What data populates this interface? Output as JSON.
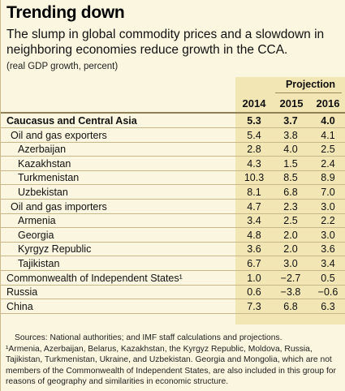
{
  "title": "Trending down",
  "subtitle": "The slump in global commodity prices and a slowdown in neighboring economies reduce growth in the CCA.",
  "unit": "(real GDP growth, percent)",
  "projection_label": "Projection",
  "years": [
    "2014",
    "2015",
    "2016"
  ],
  "rows": [
    {
      "label": "Caucasus and Central Asia",
      "level": 0,
      "bold": true,
      "values": [
        "5.3",
        "3.7",
        "4.0"
      ]
    },
    {
      "label": "Oil and gas exporters",
      "level": 1,
      "bold": false,
      "values": [
        "5.4",
        "3.8",
        "4.1"
      ]
    },
    {
      "label": "Azerbaijan",
      "level": 2,
      "bold": false,
      "values": [
        "2.8",
        "4.0",
        "2.5"
      ]
    },
    {
      "label": "Kazakhstan",
      "level": 2,
      "bold": false,
      "values": [
        "4.3",
        "1.5",
        "2.4"
      ]
    },
    {
      "label": "Turkmenistan",
      "level": 2,
      "bold": false,
      "values": [
        "10.3",
        "8.5",
        "8.9"
      ]
    },
    {
      "label": "Uzbekistan",
      "level": 2,
      "bold": false,
      "values": [
        "8.1",
        "6.8",
        "7.0"
      ]
    },
    {
      "label": "Oil and gas importers",
      "level": 1,
      "bold": false,
      "values": [
        "4.7",
        "2.3",
        "3.0"
      ]
    },
    {
      "label": "Armenia",
      "level": 2,
      "bold": false,
      "values": [
        "3.4",
        "2.5",
        "2.2"
      ]
    },
    {
      "label": "Georgia",
      "level": 2,
      "bold": false,
      "values": [
        "4.8",
        "2.0",
        "3.0"
      ]
    },
    {
      "label": "Kyrgyz Republic",
      "level": 2,
      "bold": false,
      "values": [
        "3.6",
        "2.0",
        "3.6"
      ]
    },
    {
      "label": "Tajikistan",
      "level": 2,
      "bold": false,
      "values": [
        "6.7",
        "3.0",
        "3.4"
      ]
    },
    {
      "label": "Commonwealth of Independent States¹",
      "level": 0,
      "bold": false,
      "values": [
        "1.0",
        "−2.7",
        "0.5"
      ]
    },
    {
      "label": "Russia",
      "level": 0,
      "bold": false,
      "values": [
        "0.6",
        "−3.8",
        "−0.6"
      ]
    },
    {
      "label": "China",
      "level": 0,
      "bold": false,
      "values": [
        "7.3",
        "6.8",
        "6.3"
      ]
    }
  ],
  "notes": {
    "source": "Sources: National authorities; and IMF staff calculations and projections.",
    "footnote": "¹Armenia, Azerbaijan, Belarus, Kazakhstan, the Kyrgyz Republic, Moldova, Russia, Tajikistan, Turkmenistan, Ukraine, and Uzbekistan. Georgia and Mongolia, which are not members of the Commonwealth of Independent States, are also included in this group for reasons of geography and similarities in economic structure."
  },
  "colors": {
    "background": "#fbf6df",
    "column_shade": "#f2e6b5",
    "rule": "#c7b789"
  }
}
